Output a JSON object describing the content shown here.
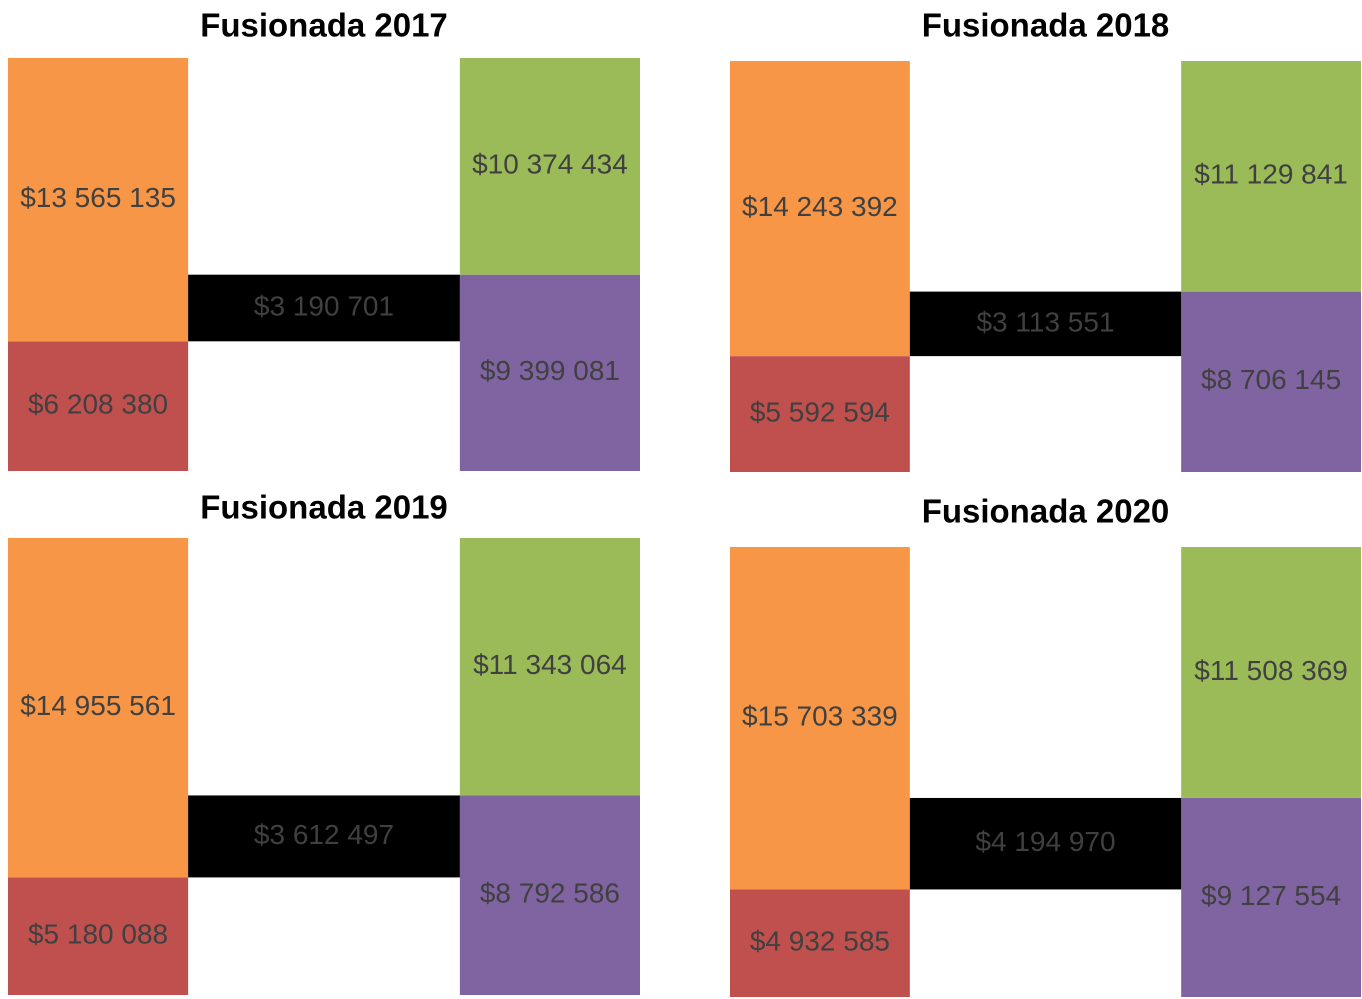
{
  "chart_data": [
    {
      "type": "bridge",
      "title": "Fusionada 2017",
      "series": [
        {
          "color": "#f79646",
          "values": [
            13565135
          ],
          "value_labels": [
            "$13 565 135"
          ]
        },
        {
          "color": "#c0504d",
          "values": [
            6208380
          ],
          "value_labels": [
            "$6 208 380"
          ]
        },
        {
          "color": "#9bbb59",
          "values": [
            10374434
          ],
          "value_labels": [
            "$10 374 434"
          ]
        },
        {
          "color": "#8064a2",
          "values": [
            9399081
          ],
          "value_labels": [
            "$9 399 081"
          ]
        },
        {
          "color": "#000000",
          "values": [
            3190701
          ],
          "value_labels": [
            "$3 190 701"
          ]
        }
      ]
    },
    {
      "type": "bridge",
      "title": "Fusionada 2018",
      "series": [
        {
          "color": "#f79646",
          "values": [
            14243392
          ],
          "value_labels": [
            "$14 243 392"
          ]
        },
        {
          "color": "#c0504d",
          "values": [
            5592594
          ],
          "value_labels": [
            "$5 592 594"
          ]
        },
        {
          "color": "#9bbb59",
          "values": [
            11129841
          ],
          "value_labels": [
            "$11 129 841"
          ]
        },
        {
          "color": "#8064a2",
          "values": [
            8706145
          ],
          "value_labels": [
            "$8 706 145"
          ]
        },
        {
          "color": "#000000",
          "values": [
            3113551
          ],
          "value_labels": [
            "$3 113 551"
          ]
        }
      ]
    },
    {
      "type": "bridge",
      "title": "Fusionada 2019",
      "series": [
        {
          "color": "#f79646",
          "values": [
            14955561
          ],
          "value_labels": [
            "$14 955 561"
          ]
        },
        {
          "color": "#c0504d",
          "values": [
            5180088
          ],
          "value_labels": [
            "$5 180 088"
          ]
        },
        {
          "color": "#9bbb59",
          "values": [
            11343064
          ],
          "value_labels": [
            "$11 343 064"
          ]
        },
        {
          "color": "#8064a2",
          "values": [
            8792586
          ],
          "value_labels": [
            "$8 792 586"
          ]
        },
        {
          "color": "#000000",
          "values": [
            3612497
          ],
          "value_labels": [
            "$3 612 497"
          ]
        }
      ]
    },
    {
      "type": "bridge",
      "title": "Fusionada 2020",
      "series": [
        {
          "color": "#f79646",
          "values": [
            15703339
          ],
          "value_labels": [
            "$15 703 339"
          ]
        },
        {
          "color": "#c0504d",
          "values": [
            4932585
          ],
          "value_labels": [
            "$4 932 585"
          ]
        },
        {
          "color": "#9bbb59",
          "values": [
            11508369
          ],
          "value_labels": [
            "$11 508 369"
          ]
        },
        {
          "color": "#8064a2",
          "values": [
            9127554
          ],
          "value_labels": [
            "$9 127 554"
          ]
        },
        {
          "color": "#000000",
          "values": [
            4194970
          ],
          "value_labels": [
            "$4 194 970"
          ]
        }
      ]
    }
  ]
}
